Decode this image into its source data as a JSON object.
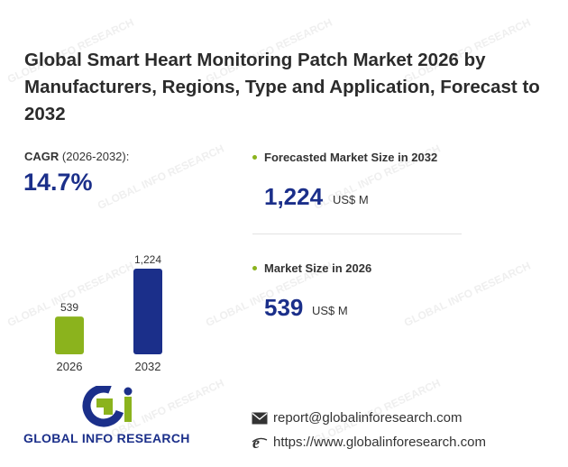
{
  "watermark_text": "GLOBAL INFO RESEARCH",
  "title": "Global Smart Heart Monitoring Patch Market 2026 by Manufacturers, Regions, Type and Application, Forecast to 2032",
  "cagr": {
    "label_bold": "CAGR",
    "label_period": "(2026-2032):",
    "value": "14.7%"
  },
  "chart_data": {
    "type": "bar",
    "categories": [
      "2026",
      "2032"
    ],
    "values": [
      539,
      1224
    ],
    "value_labels": [
      "539",
      "1,224"
    ],
    "colors": [
      "#8bb31d",
      "#1b2f8a"
    ]
  },
  "stats": {
    "forecast": {
      "heading": "Forecasted Market Size in 2032",
      "value": "1,224",
      "unit": "US$ M"
    },
    "current": {
      "heading": "Market Size in 2026",
      "value": "539",
      "unit": "US$ M"
    }
  },
  "logo": {
    "text": "GLOBAL INFO RESEARCH"
  },
  "contact": {
    "email": "report@globalinforesearch.com",
    "website": "https://www.globalinforesearch.com"
  },
  "icons": {
    "email": "envelope-icon",
    "website": "browser-e-icon"
  },
  "colors": {
    "accent_green": "#8bb31d",
    "brand_blue": "#1b2f8a"
  }
}
